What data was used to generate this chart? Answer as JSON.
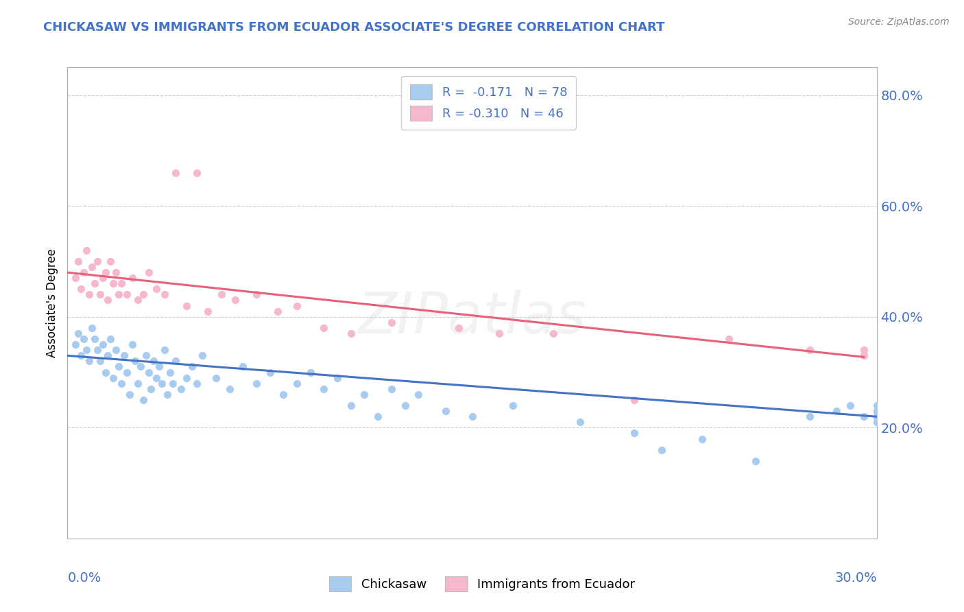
{
  "title": "CHICKASAW VS IMMIGRANTS FROM ECUADOR ASSOCIATE'S DEGREE CORRELATION CHART",
  "source_text": "Source: ZipAtlas.com",
  "ylabel": "Associate's Degree",
  "xlim": [
    0.0,
    30.0
  ],
  "ylim": [
    0.0,
    85.0
  ],
  "yticks": [
    20.0,
    40.0,
    60.0,
    80.0
  ],
  "ytick_labels": [
    "20.0%",
    "40.0%",
    "60.0%",
    "80.0%"
  ],
  "watermark": "ZIPatlas",
  "color_blue": "#A8CCF0",
  "color_pink": "#F5B8CC",
  "color_blue_line": "#4472C4",
  "color_pink_line": "#E8607A",
  "color_title": "#4472C4",
  "color_axis_labels": "#4472C4",
  "background_color": "#FFFFFF",
  "chickasaw_x": [
    0.3,
    0.4,
    0.5,
    0.6,
    0.7,
    0.8,
    0.9,
    1.0,
    1.1,
    1.2,
    1.3,
    1.4,
    1.5,
    1.6,
    1.7,
    1.8,
    1.9,
    2.0,
    2.1,
    2.2,
    2.3,
    2.4,
    2.5,
    2.6,
    2.7,
    2.8,
    2.9,
    3.0,
    3.1,
    3.2,
    3.3,
    3.4,
    3.5,
    3.6,
    3.7,
    3.8,
    3.9,
    4.0,
    4.2,
    4.4,
    4.6,
    4.8,
    5.0,
    5.5,
    6.0,
    6.5,
    7.0,
    7.5,
    8.0,
    8.5,
    9.0,
    9.5,
    10.0,
    10.5,
    11.0,
    11.5,
    12.0,
    12.5,
    13.0,
    14.0,
    15.0,
    16.5,
    19.0,
    21.0,
    22.0,
    23.5,
    25.5,
    27.5,
    28.5,
    29.0,
    29.5,
    30.0,
    30.0,
    30.0,
    30.0,
    30.0,
    30.0,
    30.0
  ],
  "chickasaw_y": [
    35.0,
    37.0,
    33.0,
    36.0,
    34.0,
    32.0,
    38.0,
    36.0,
    34.0,
    32.0,
    35.0,
    30.0,
    33.0,
    36.0,
    29.0,
    34.0,
    31.0,
    28.0,
    33.0,
    30.0,
    26.0,
    35.0,
    32.0,
    28.0,
    31.0,
    25.0,
    33.0,
    30.0,
    27.0,
    32.0,
    29.0,
    31.0,
    28.0,
    34.0,
    26.0,
    30.0,
    28.0,
    32.0,
    27.0,
    29.0,
    31.0,
    28.0,
    33.0,
    29.0,
    27.0,
    31.0,
    28.0,
    30.0,
    26.0,
    28.0,
    30.0,
    27.0,
    29.0,
    24.0,
    26.0,
    22.0,
    27.0,
    24.0,
    26.0,
    23.0,
    22.0,
    24.0,
    21.0,
    19.0,
    16.0,
    18.0,
    14.0,
    22.0,
    23.0,
    24.0,
    22.0,
    21.0,
    22.0,
    23.0,
    24.0,
    21.0,
    22.0,
    23.0
  ],
  "ecuador_x": [
    0.3,
    0.4,
    0.5,
    0.6,
    0.7,
    0.8,
    0.9,
    1.0,
    1.1,
    1.2,
    1.3,
    1.4,
    1.5,
    1.6,
    1.7,
    1.8,
    1.9,
    2.0,
    2.2,
    2.4,
    2.6,
    2.8,
    3.0,
    3.3,
    3.6,
    4.0,
    4.4,
    4.8,
    5.2,
    5.7,
    6.2,
    7.0,
    7.8,
    8.5,
    9.5,
    10.5,
    12.0,
    14.5,
    16.0,
    18.0,
    21.0,
    24.5,
    27.5,
    29.5,
    29.5,
    29.5
  ],
  "ecuador_y": [
    47.0,
    50.0,
    45.0,
    48.0,
    52.0,
    44.0,
    49.0,
    46.0,
    50.0,
    44.0,
    47.0,
    48.0,
    43.0,
    50.0,
    46.0,
    48.0,
    44.0,
    46.0,
    44.0,
    47.0,
    43.0,
    44.0,
    48.0,
    45.0,
    44.0,
    66.0,
    42.0,
    66.0,
    41.0,
    44.0,
    43.0,
    44.0,
    41.0,
    42.0,
    38.0,
    37.0,
    39.0,
    38.0,
    37.0,
    37.0,
    25.0,
    36.0,
    34.0,
    33.0,
    34.0,
    33.0
  ]
}
